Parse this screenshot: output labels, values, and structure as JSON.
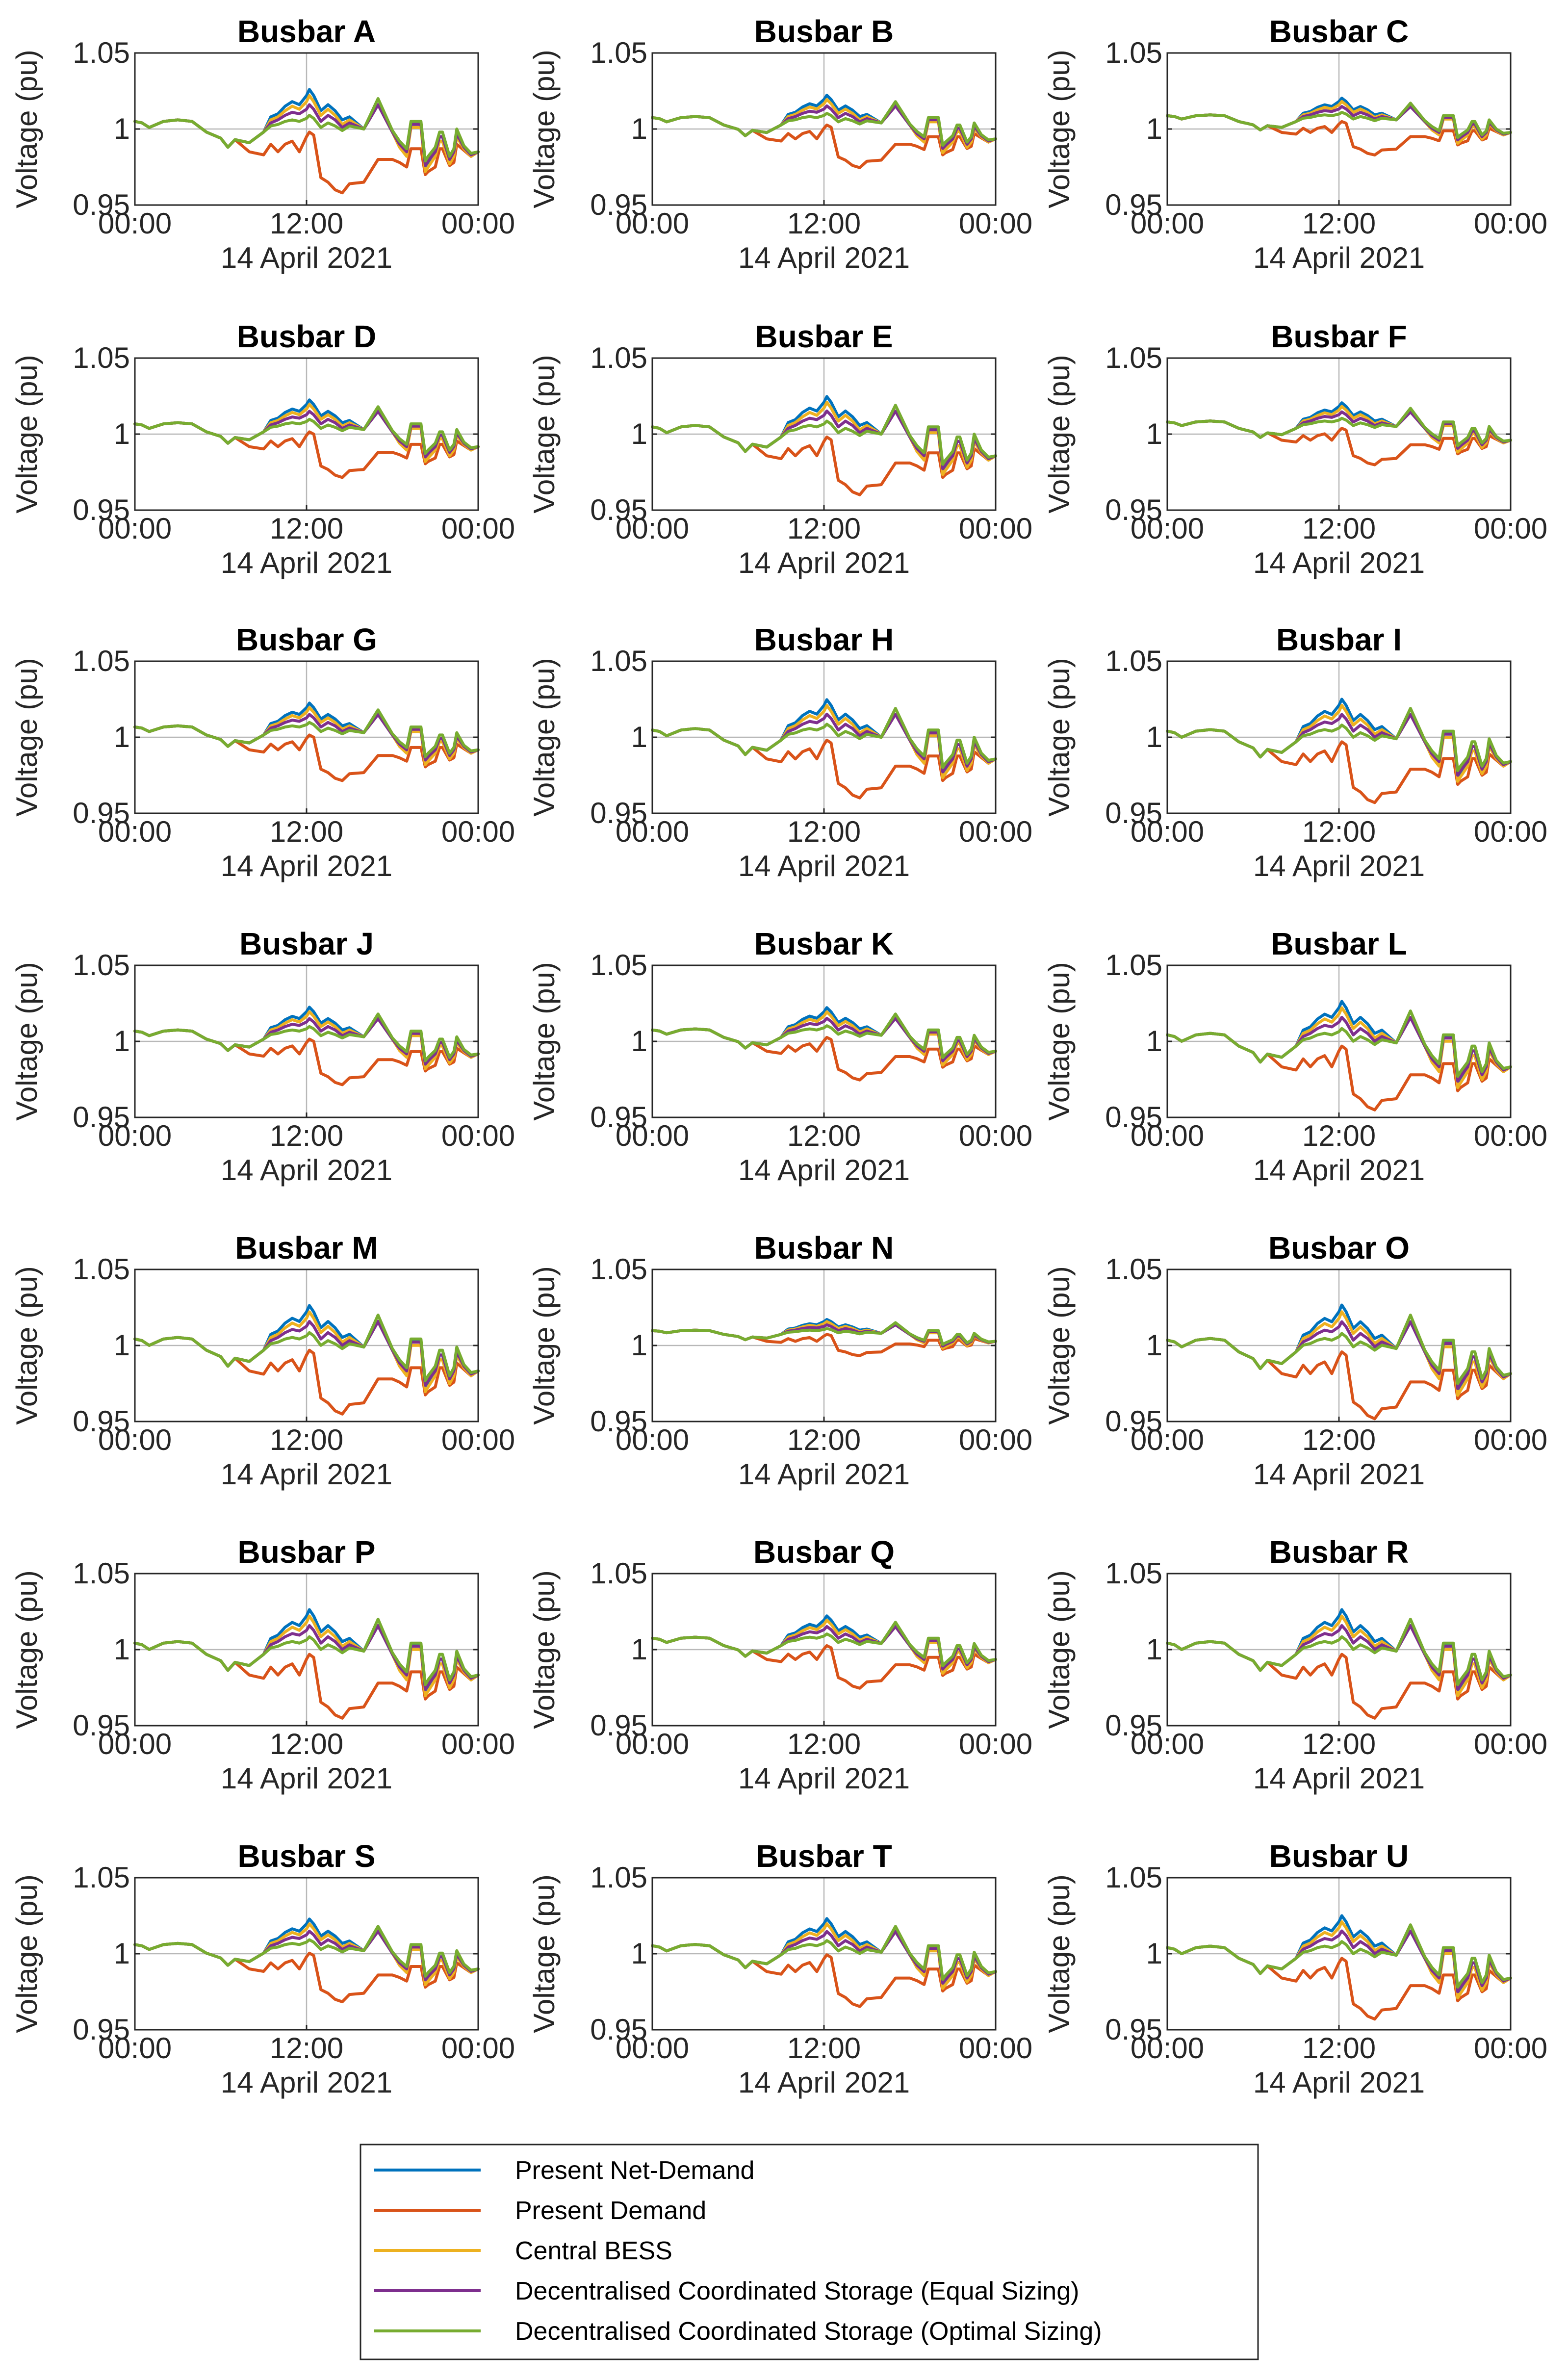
{
  "chart_data": {
    "type": "line",
    "grid_layout": "7 rows x 3 columns",
    "shared_axes": {
      "xlabel": "14 April 2021",
      "ylabel": "Voltage (pu)",
      "xticks": [
        "00:00",
        "12:00",
        "00:00"
      ],
      "xlim_hours": [
        0,
        24
      ],
      "ylim": [
        0.95,
        1.05
      ],
      "yticks": [
        "0.95",
        "1",
        "1.05"
      ],
      "yticks_values": [
        0.95,
        1.0,
        1.05
      ],
      "grid": "single crosshair at x = 12:00 and y = 1"
    },
    "legend": {
      "placement": "bottom-center",
      "entries": [
        {
          "name": "Present Net-Demand",
          "color": "#0072BD"
        },
        {
          "name": "Present Demand",
          "color": "#D95319"
        },
        {
          "name": "Central BESS",
          "color": "#EDB120"
        },
        {
          "name": "Decentralised Coordinated Storage (Equal Sizing)",
          "color": "#7E2F8E"
        },
        {
          "name": "Decentralised Coordinated Storage (Optimal Sizing)",
          "color": "#77AC30"
        }
      ]
    },
    "series_shape_note": "Every panel uses the same 24-hour profile; values below are approximate voltages (pu) sampled at the listed hours, scaled per panel.",
    "hours": [
      0,
      0.5,
      1,
      2,
      3,
      4,
      5,
      6,
      6.5,
      7,
      8,
      9,
      9.5,
      10,
      10.5,
      11,
      11.5,
      12,
      12.2,
      12.5,
      13,
      13.5,
      14,
      14.5,
      15,
      16,
      17,
      18,
      18.5,
      19,
      19.3,
      20,
      20.3,
      20.5,
      21,
      21.3,
      21.5,
      22,
      22.3,
      22.5,
      23,
      23.5,
      24
    ],
    "base_profiles": {
      "Present Net-Demand": [
        1.005,
        1.004,
        1.001,
        1.005,
        1.006,
        1.005,
        0.998,
        0.994,
        0.988,
        0.993,
        0.991,
        0.998,
        1.008,
        1.01,
        1.015,
        1.018,
        1.016,
        1.022,
        1.026,
        1.022,
        1.012,
        1.016,
        1.012,
        1.006,
        1.008,
        1.0,
        1.016,
        0.998,
        0.99,
        0.985,
        1.004,
        1.004,
        0.975,
        0.978,
        0.985,
        0.995,
        0.995,
        0.98,
        0.985,
        0.998,
        0.988,
        0.983,
        0.985
      ],
      "Present Demand": [
        1.005,
        1.004,
        1.001,
        1.005,
        1.006,
        1.005,
        0.998,
        0.994,
        0.988,
        0.993,
        0.985,
        0.983,
        0.99,
        0.985,
        0.99,
        0.992,
        0.985,
        0.995,
        0.998,
        0.996,
        0.968,
        0.965,
        0.96,
        0.958,
        0.964,
        0.965,
        0.98,
        0.98,
        0.978,
        0.975,
        0.987,
        0.987,
        0.97,
        0.972,
        0.975,
        0.987,
        0.987,
        0.976,
        0.978,
        0.99,
        0.986,
        0.982,
        0.985
      ],
      "Central BESS": [
        1.005,
        1.004,
        1.001,
        1.005,
        1.006,
        1.005,
        0.998,
        0.994,
        0.988,
        0.993,
        0.991,
        0.998,
        1.006,
        1.008,
        1.012,
        1.015,
        1.013,
        1.018,
        1.022,
        1.018,
        1.009,
        1.013,
        1.009,
        1.003,
        1.006,
        1.0,
        1.016,
        0.998,
        0.988,
        0.982,
        1.001,
        1.001,
        0.972,
        0.975,
        0.982,
        0.992,
        0.992,
        0.977,
        0.982,
        0.995,
        0.987,
        0.982,
        0.985
      ],
      "Decentralised Coordinated Storage (Equal Sizing)": [
        1.005,
        1.004,
        1.001,
        1.005,
        1.006,
        1.005,
        0.998,
        0.994,
        0.988,
        0.993,
        0.991,
        0.998,
        1.004,
        1.006,
        1.009,
        1.011,
        1.01,
        1.013,
        1.016,
        1.013,
        1.005,
        1.009,
        1.006,
        1.001,
        1.004,
        1.0,
        1.016,
        0.998,
        0.99,
        0.985,
        1.003,
        1.003,
        0.976,
        0.979,
        0.985,
        0.995,
        0.995,
        0.98,
        0.985,
        0.997,
        0.988,
        0.983,
        0.985
      ],
      "Decentralised Coordinated Storage (Optimal Sizing)": [
        1.005,
        1.004,
        1.001,
        1.005,
        1.006,
        1.005,
        0.998,
        0.994,
        0.988,
        0.993,
        0.991,
        0.998,
        1.002,
        1.003,
        1.005,
        1.006,
        1.005,
        1.007,
        1.009,
        1.007,
        1.001,
        1.004,
        1.002,
        0.999,
        1.002,
        1.0,
        1.02,
        0.999,
        0.992,
        0.987,
        1.005,
        1.005,
        0.979,
        0.982,
        0.988,
        0.998,
        0.998,
        0.982,
        0.987,
        1.0,
        0.989,
        0.984,
        0.985
      ]
    },
    "panels": [
      {
        "title": "Busbar A",
        "offset": 0.0,
        "scale": 1.0
      },
      {
        "title": "Busbar B",
        "offset": 0.004,
        "scale": 0.7
      },
      {
        "title": "Busbar C",
        "offset": 0.006,
        "scale": 0.55
      },
      {
        "title": "Busbar D",
        "offset": 0.003,
        "scale": 0.75
      },
      {
        "title": "Busbar E",
        "offset": 0.0,
        "scale": 0.95
      },
      {
        "title": "Busbar F",
        "offset": 0.005,
        "scale": 0.6
      },
      {
        "title": "Busbar G",
        "offset": 0.003,
        "scale": 0.75
      },
      {
        "title": "Busbar H",
        "offset": 0.0,
        "scale": 0.95
      },
      {
        "title": "Busbar I",
        "offset": -0.001,
        "scale": 1.0
      },
      {
        "title": "Busbar J",
        "offset": 0.003,
        "scale": 0.75
      },
      {
        "title": "Busbar K",
        "offset": 0.004,
        "scale": 0.7
      },
      {
        "title": "Busbar L",
        "offset": -0.001,
        "scale": 1.05
      },
      {
        "title": "Busbar M",
        "offset": -0.001,
        "scale": 1.05
      },
      {
        "title": "Busbar N",
        "offset": 0.008,
        "scale": 0.35
      },
      {
        "title": "Busbar O",
        "offset": -0.002,
        "scale": 1.1
      },
      {
        "title": "Busbar P",
        "offset": -0.001,
        "scale": 1.05
      },
      {
        "title": "Busbar Q",
        "offset": 0.004,
        "scale": 0.7
      },
      {
        "title": "Busbar R",
        "offset": -0.001,
        "scale": 1.05
      },
      {
        "title": "Busbar S",
        "offset": 0.002,
        "scale": 0.8
      },
      {
        "title": "Busbar T",
        "offset": 0.001,
        "scale": 0.85
      },
      {
        "title": "Busbar U",
        "offset": -0.001,
        "scale": 1.0
      }
    ]
  }
}
